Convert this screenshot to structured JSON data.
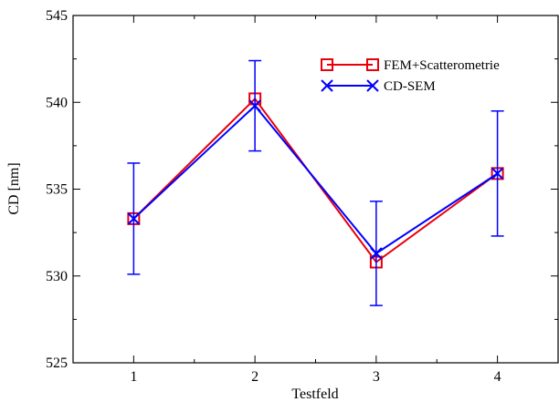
{
  "chart_data": {
    "type": "line",
    "title": "",
    "xlabel": "Testfeld",
    "ylabel": "CD [nm]",
    "xlim": [
      0.5,
      4.5
    ],
    "ylim": [
      525,
      545
    ],
    "x_ticks": [
      "1",
      "2",
      "3",
      "4"
    ],
    "y_ticks": [
      "525",
      "530",
      "535",
      "540",
      "545"
    ],
    "grid": false,
    "legend_position": "top-right",
    "x": [
      1,
      2,
      3,
      4
    ],
    "series": [
      {
        "name": "FEM+Scatterometrie",
        "color": "#e8000b",
        "marker": "square",
        "values": [
          533.3,
          540.2,
          530.8,
          535.9
        ]
      },
      {
        "name": "CD-SEM",
        "color": "#0000ff",
        "marker": "x",
        "values": [
          533.3,
          539.8,
          531.3,
          535.9
        ],
        "error": [
          3.2,
          2.6,
          3.0,
          3.6
        ]
      }
    ]
  }
}
